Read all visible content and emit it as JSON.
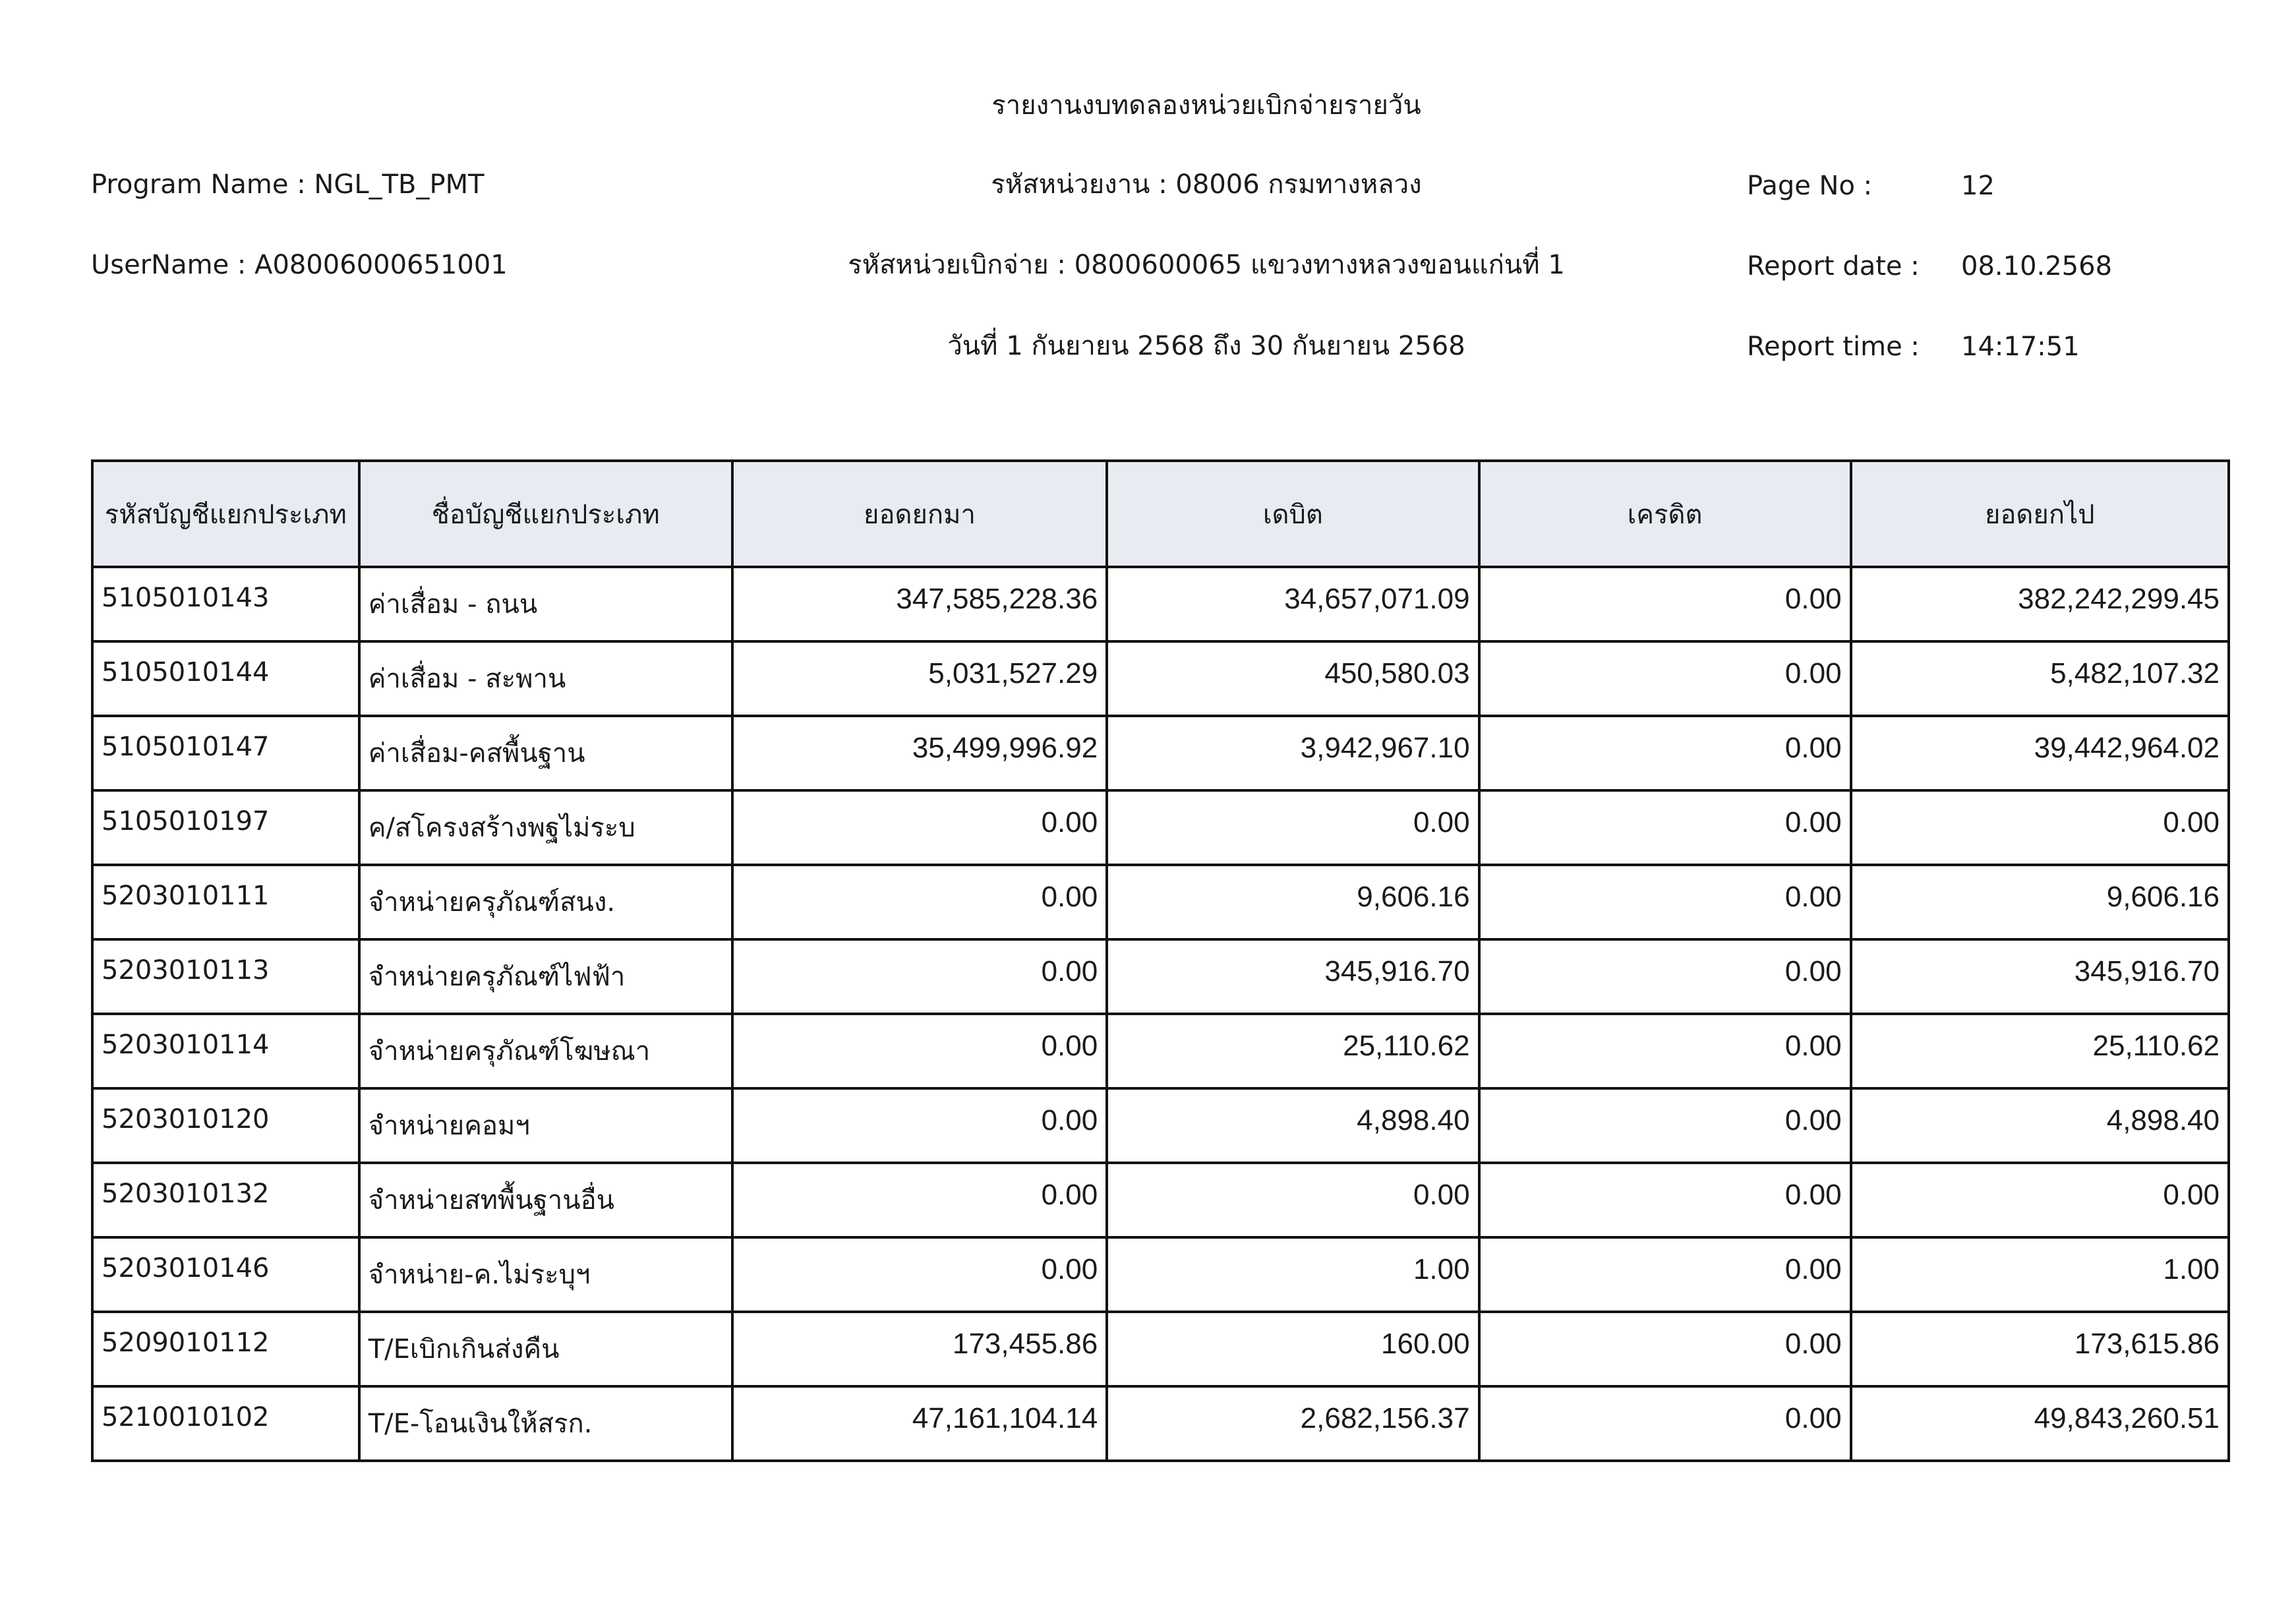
{
  "header": {
    "title": "รายงานงบทดลองหน่วยเบิกจ่ายรายวัน",
    "program_name": "Program Name : NGL_TB_PMT",
    "username": "UserName : A08006000651001",
    "agency": "รหัสหน่วยงาน : 08006 กรมทางหลวง",
    "disbursing_unit": "รหัสหน่วยเบิกจ่าย : 0800600065 แขวงทางหลวงขอนแก่นที่ 1",
    "period": "วันที่ 1 กันยายน 2568 ถึง 30 กันยายน 2568",
    "page_no_label": "Page No :",
    "page_no": "12",
    "report_date_label": "Report date :",
    "report_date": "08.10.2568",
    "report_time_label": "Report time :",
    "report_time": "14:17:51"
  },
  "table": {
    "columns": [
      "รหัสบัญชีแยกประเภท",
      "ชื่อบัญชีแยกประเภท",
      "ยอดยกมา",
      "เดบิต",
      "เครดิต",
      "ยอดยกไป"
    ],
    "rows": [
      [
        "5105010143",
        "ค่าเสื่อม - ถนน",
        "347,585,228.36",
        "34,657,071.09",
        "0.00",
        "382,242,299.45"
      ],
      [
        "5105010144",
        "ค่าเสื่อม - สะพาน",
        "5,031,527.29",
        "450,580.03",
        "0.00",
        "5,482,107.32"
      ],
      [
        "5105010147",
        "ค่าเสื่อม-คสพื้นฐาน",
        "35,499,996.92",
        "3,942,967.10",
        "0.00",
        "39,442,964.02"
      ],
      [
        "5105010197",
        "ค/สโครงสร้างพฐไม่ระบ",
        "0.00",
        "0.00",
        "0.00",
        "0.00"
      ],
      [
        "5203010111",
        "จำหน่ายครุภัณฑ์สนง.",
        "0.00",
        "9,606.16",
        "0.00",
        "9,606.16"
      ],
      [
        "5203010113",
        "จำหน่ายครุภัณฑ์ไฟฟ้า",
        "0.00",
        "345,916.70",
        "0.00",
        "345,916.70"
      ],
      [
        "5203010114",
        "จำหน่ายครุภัณฑ์โฆษณา",
        "0.00",
        "25,110.62",
        "0.00",
        "25,110.62"
      ],
      [
        "5203010120",
        "จำหน่ายคอมฯ",
        "0.00",
        "4,898.40",
        "0.00",
        "4,898.40"
      ],
      [
        "5203010132",
        "จำหน่ายสทพื้นฐานอื่น",
        "0.00",
        "0.00",
        "0.00",
        "0.00"
      ],
      [
        "5203010146",
        "จำหน่าย-ค.ไม่ระบุฯ",
        "0.00",
        "1.00",
        "0.00",
        "1.00"
      ],
      [
        "5209010112",
        "T/Eเบิกเกินส่งคืน",
        "173,455.86",
        "160.00",
        "0.00",
        "173,615.86"
      ],
      [
        "5210010102",
        "T/E-โอนเงินให้สรก.",
        "47,161,104.14",
        "2,682,156.37",
        "0.00",
        "49,843,260.51"
      ]
    ]
  }
}
